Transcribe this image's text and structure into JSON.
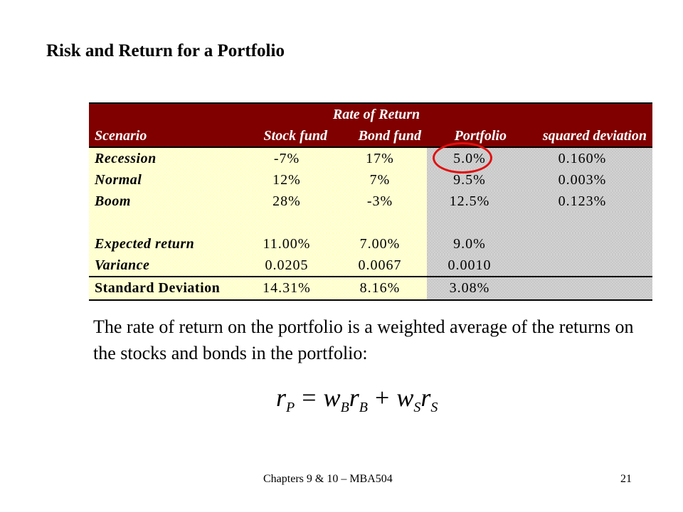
{
  "slide": {
    "title": "Risk and Return for a Portfolio",
    "footer": "Chapters 9 & 10  – MBA504",
    "page_number": "21"
  },
  "table": {
    "group_header": "Rate of Return",
    "columns": [
      "Scenario",
      "Stock fund",
      "Bond fund",
      "Portfolio",
      "squared deviation"
    ],
    "rows": [
      {
        "label": "Recession",
        "stock": "-7%",
        "bond": "17%",
        "portfolio": "5.0%",
        "sqdev": "0.160%"
      },
      {
        "label": "Normal",
        "stock": "12%",
        "bond": "7%",
        "portfolio": "9.5%",
        "sqdev": "0.003%"
      },
      {
        "label": "Boom",
        "stock": "28%",
        "bond": "-3%",
        "portfolio": "12.5%",
        "sqdev": "0.123%"
      }
    ],
    "expected_return": {
      "label": "Expected return",
      "stock": "11.00%",
      "bond": "7.00%",
      "portfolio": "9.0%"
    },
    "variance": {
      "label": "Variance",
      "stock": "0.0205",
      "bond": "0.0067",
      "portfolio": "0.0010"
    },
    "std_dev": {
      "label": "Standard Deviation",
      "stock": "14.31%",
      "bond": "8.16%",
      "portfolio": "3.08%"
    }
  },
  "paragraph": "The rate of return on the portfolio is a weighted average of the returns on the stocks and bonds in the portfolio:",
  "formula": {
    "lhs": "r",
    "lhs_sub": "P",
    "eq": "=",
    "t1_w": "w",
    "t1_w_sub": "B",
    "t1_r": "r",
    "t1_r_sub": "B",
    "plus": "+",
    "t2_w": "w",
    "t2_w_sub": "S",
    "t2_r": "r",
    "t2_r_sub": "S"
  },
  "colors": {
    "header_bg": "#800000",
    "label_bg": "#ffffc8",
    "portfolio_bg": "#c8c8c8",
    "highlight_circle": "#e01010"
  }
}
